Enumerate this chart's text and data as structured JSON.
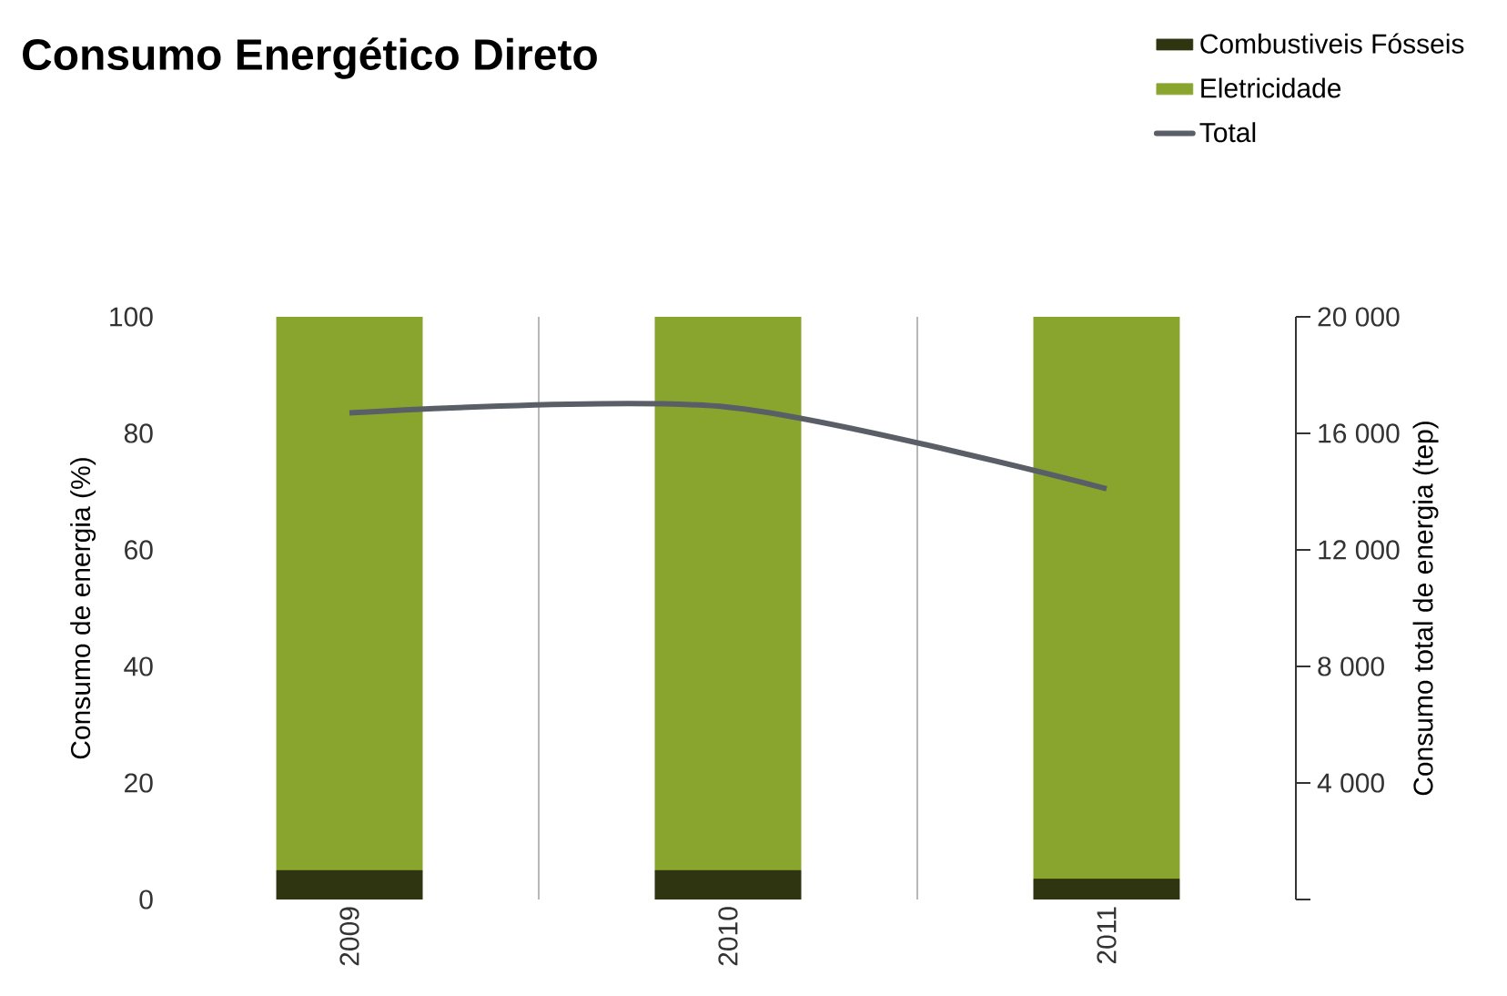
{
  "chart_data": {
    "type": "bar",
    "title": "Consumo Energético Direto",
    "categories": [
      "2009",
      "2010",
      "2011"
    ],
    "stacked": true,
    "series": [
      {
        "name": "Combustiveis Fósseis",
        "color": "#2e3510",
        "values": [
          5,
          5,
          3.5
        ]
      },
      {
        "name": "Eletricidade",
        "color": "#8aa52e",
        "values": [
          95,
          95,
          96.5
        ]
      },
      {
        "name": "Total",
        "color": "#5a5e66",
        "type": "line",
        "axis": "y2",
        "values": [
          16700,
          16900,
          14100
        ]
      }
    ],
    "ylabel": "Consumo de energia (%)",
    "y2label": "Consumo total de energia (tep)",
    "ylim": [
      0,
      100
    ],
    "yticks": [
      0,
      20,
      40,
      60,
      80,
      100
    ],
    "y2lim": [
      0,
      20000
    ],
    "y2ticks": [
      {
        "value": 0,
        "label": null
      },
      {
        "value": 4000,
        "label": "4 000"
      },
      {
        "value": 8000,
        "label": "8 000"
      },
      {
        "value": 12000,
        "label": "12 000"
      },
      {
        "value": 16000,
        "label": "16 000"
      },
      {
        "value": 20000,
        "label": "20 000"
      }
    ],
    "grid": "x",
    "legend": "top right"
  }
}
